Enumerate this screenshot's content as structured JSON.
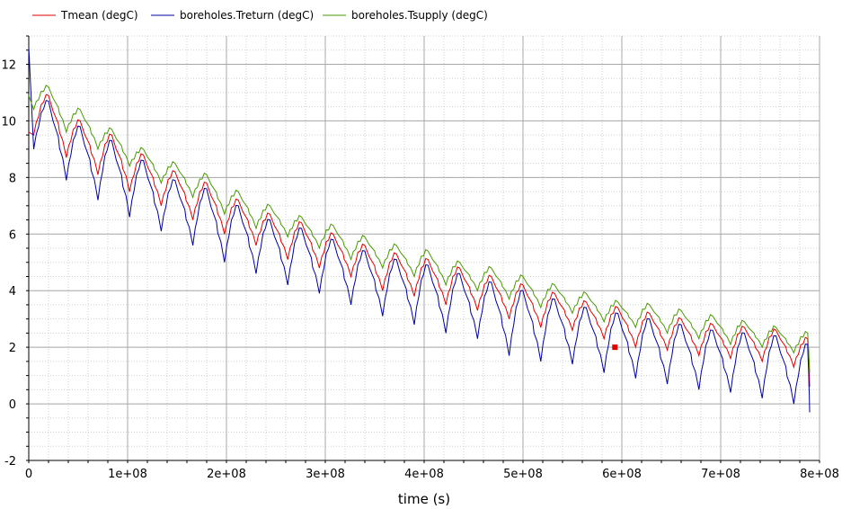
{
  "chart_data": {
    "type": "line",
    "title": "",
    "xlabel": "time (s)",
    "ylabel": "",
    "xlim": [
      0,
      800000000
    ],
    "ylim": [
      -2,
      13
    ],
    "grid": true,
    "legend_placement": "top-left",
    "x_ticks": [
      {
        "value": 0,
        "label": "0"
      },
      {
        "value": 100000000,
        "label": "1e+08"
      },
      {
        "value": 200000000,
        "label": "2e+08"
      },
      {
        "value": 300000000,
        "label": "3e+08"
      },
      {
        "value": 400000000,
        "label": "4e+08"
      },
      {
        "value": 500000000,
        "label": "5e+08"
      },
      {
        "value": 600000000,
        "label": "6e+08"
      },
      {
        "value": 700000000,
        "label": "7e+08"
      },
      {
        "value": 800000000,
        "label": "8e+08"
      }
    ],
    "y_ticks": [
      {
        "value": -2,
        "label": "-2"
      },
      {
        "value": 0,
        "label": "0"
      },
      {
        "value": 2,
        "label": "2"
      },
      {
        "value": 4,
        "label": "4"
      },
      {
        "value": 6,
        "label": "6"
      },
      {
        "value": 8,
        "label": "8"
      },
      {
        "value": 10,
        "label": "10"
      },
      {
        "value": 12,
        "label": "12"
      }
    ],
    "series": [
      {
        "name": "Tmean (degC)",
        "color": "#e00000",
        "peaks": [
          [
            20000000.0,
            10.9
          ],
          [
            52000000.0,
            10.0
          ],
          [
            84000000.0,
            9.5
          ],
          [
            116000000.0,
            8.8
          ],
          [
            148000000.0,
            8.2
          ],
          [
            180000000.0,
            7.8
          ],
          [
            212000000.0,
            7.2
          ],
          [
            244000000.0,
            6.7
          ],
          [
            276000000.0,
            6.4
          ],
          [
            308000000.0,
            6.0
          ],
          [
            340000000.0,
            5.6
          ],
          [
            372000000.0,
            5.3
          ],
          [
            404000000.0,
            5.1
          ],
          [
            436000000.0,
            4.8
          ],
          [
            468000000.0,
            4.5
          ],
          [
            500000000.0,
            4.2
          ],
          [
            532000000.0,
            3.9
          ],
          [
            564000000.0,
            3.6
          ],
          [
            596000000.0,
            3.4
          ],
          [
            628000000.0,
            3.2
          ],
          [
            660000000.0,
            3.0
          ],
          [
            692000000.0,
            2.8
          ],
          [
            724000000.0,
            2.7
          ],
          [
            756000000.0,
            2.6
          ],
          [
            788000000.0,
            2.3
          ]
        ],
        "troughs": [
          [
            5000000.0,
            9.5
          ],
          [
            38000000.0,
            8.7
          ],
          [
            70000000.0,
            8.1
          ],
          [
            102000000.0,
            7.5
          ],
          [
            134000000.0,
            7.0
          ],
          [
            166000000.0,
            6.5
          ],
          [
            198000000.0,
            6.0
          ],
          [
            230000000.0,
            5.6
          ],
          [
            262000000.0,
            5.1
          ],
          [
            294000000.0,
            4.8
          ],
          [
            326000000.0,
            4.5
          ],
          [
            358000000.0,
            4.0
          ],
          [
            390000000.0,
            3.8
          ],
          [
            422000000.0,
            3.5
          ],
          [
            454000000.0,
            3.3
          ],
          [
            486000000.0,
            3.0
          ],
          [
            518000000.0,
            2.7
          ],
          [
            550000000.0,
            2.6
          ],
          [
            582000000.0,
            2.3
          ],
          [
            614000000.0,
            2.0
          ],
          [
            646000000.0,
            1.9
          ],
          [
            678000000.0,
            1.7
          ],
          [
            710000000.0,
            1.6
          ],
          [
            742000000.0,
            1.5
          ],
          [
            774000000.0,
            1.3
          ],
          [
            790000000.0,
            0.6
          ]
        ]
      },
      {
        "name": "boreholes.Treturn (degC)",
        "color": "#0000a0",
        "peaks": [
          [
            20000000.0,
            10.7
          ],
          [
            52000000.0,
            9.8
          ],
          [
            84000000.0,
            9.3
          ],
          [
            116000000.0,
            8.6
          ],
          [
            148000000.0,
            7.9
          ],
          [
            180000000.0,
            7.6
          ],
          [
            212000000.0,
            7.0
          ],
          [
            244000000.0,
            6.5
          ],
          [
            276000000.0,
            6.2
          ],
          [
            308000000.0,
            5.8
          ],
          [
            340000000.0,
            5.4
          ],
          [
            372000000.0,
            5.1
          ],
          [
            404000000.0,
            4.9
          ],
          [
            436000000.0,
            4.6
          ],
          [
            468000000.0,
            4.3
          ],
          [
            500000000.0,
            4.0
          ],
          [
            532000000.0,
            3.7
          ],
          [
            564000000.0,
            3.4
          ],
          [
            596000000.0,
            3.2
          ],
          [
            628000000.0,
            3.0
          ],
          [
            660000000.0,
            2.8
          ],
          [
            692000000.0,
            2.6
          ],
          [
            724000000.0,
            2.5
          ],
          [
            756000000.0,
            2.4
          ],
          [
            788000000.0,
            2.1
          ]
        ],
        "troughs": [
          [
            5000000.0,
            9.0
          ],
          [
            38000000.0,
            7.9
          ],
          [
            70000000.0,
            7.2
          ],
          [
            102000000.0,
            6.6
          ],
          [
            134000000.0,
            6.1
          ],
          [
            166000000.0,
            5.6
          ],
          [
            198000000.0,
            5.0
          ],
          [
            230000000.0,
            4.6
          ],
          [
            262000000.0,
            4.2
          ],
          [
            294000000.0,
            3.9
          ],
          [
            326000000.0,
            3.5
          ],
          [
            358000000.0,
            3.1
          ],
          [
            390000000.0,
            2.8
          ],
          [
            422000000.0,
            2.5
          ],
          [
            454000000.0,
            2.3
          ],
          [
            486000000.0,
            1.7
          ],
          [
            518000000.0,
            1.5
          ],
          [
            550000000.0,
            1.4
          ],
          [
            582000000.0,
            1.1
          ],
          [
            614000000.0,
            0.9
          ],
          [
            646000000.0,
            0.7
          ],
          [
            678000000.0,
            0.5
          ],
          [
            710000000.0,
            0.4
          ],
          [
            742000000.0,
            0.2
          ],
          [
            774000000.0,
            0.0
          ],
          [
            790000000.0,
            -0.3
          ]
        ]
      },
      {
        "name": "boreholes.Tsupply (degC)",
        "color": "#4a9a00",
        "peaks": [
          [
            20000000.0,
            11.2
          ],
          [
            52000000.0,
            10.4
          ],
          [
            84000000.0,
            9.7
          ],
          [
            116000000.0,
            9.0
          ],
          [
            148000000.0,
            8.5
          ],
          [
            180000000.0,
            8.1
          ],
          [
            212000000.0,
            7.5
          ],
          [
            244000000.0,
            7.0
          ],
          [
            276000000.0,
            6.6
          ],
          [
            308000000.0,
            6.3
          ],
          [
            340000000.0,
            5.9
          ],
          [
            372000000.0,
            5.6
          ],
          [
            404000000.0,
            5.4
          ],
          [
            436000000.0,
            5.0
          ],
          [
            468000000.0,
            4.8
          ],
          [
            500000000.0,
            4.5
          ],
          [
            532000000.0,
            4.2
          ],
          [
            564000000.0,
            3.9
          ],
          [
            596000000.0,
            3.6
          ],
          [
            628000000.0,
            3.5
          ],
          [
            660000000.0,
            3.3
          ],
          [
            692000000.0,
            3.1
          ],
          [
            724000000.0,
            2.9
          ],
          [
            756000000.0,
            2.7
          ],
          [
            788000000.0,
            2.5
          ]
        ],
        "troughs": [
          [
            5000000.0,
            10.4
          ],
          [
            38000000.0,
            9.6
          ],
          [
            70000000.0,
            9.0
          ],
          [
            102000000.0,
            8.4
          ],
          [
            134000000.0,
            7.8
          ],
          [
            166000000.0,
            7.3
          ],
          [
            198000000.0,
            6.7
          ],
          [
            230000000.0,
            6.2
          ],
          [
            262000000.0,
            5.9
          ],
          [
            294000000.0,
            5.5
          ],
          [
            326000000.0,
            5.1
          ],
          [
            358000000.0,
            4.8
          ],
          [
            390000000.0,
            4.5
          ],
          [
            422000000.0,
            4.2
          ],
          [
            454000000.0,
            4.0
          ],
          [
            486000000.0,
            3.7
          ],
          [
            518000000.0,
            3.4
          ],
          [
            550000000.0,
            3.2
          ],
          [
            582000000.0,
            2.9
          ],
          [
            614000000.0,
            2.7
          ],
          [
            646000000.0,
            2.5
          ],
          [
            678000000.0,
            2.3
          ],
          [
            710000000.0,
            2.1
          ],
          [
            742000000.0,
            2.0
          ],
          [
            774000000.0,
            1.8
          ],
          [
            790000000.0,
            1.1
          ]
        ]
      }
    ],
    "initial_values": [
      {
        "series": "boreholes.Treturn (degC)",
        "x": 0,
        "y": 12.6
      },
      {
        "series": "Tmean (degC)",
        "x": 0,
        "y": 9.6
      },
      {
        "series": "boreholes.Tsupply (degC)",
        "x": 0,
        "y": 10.9
      }
    ],
    "marker": {
      "x": 593000000.0,
      "y": 2.0,
      "color": "#e00000"
    }
  }
}
